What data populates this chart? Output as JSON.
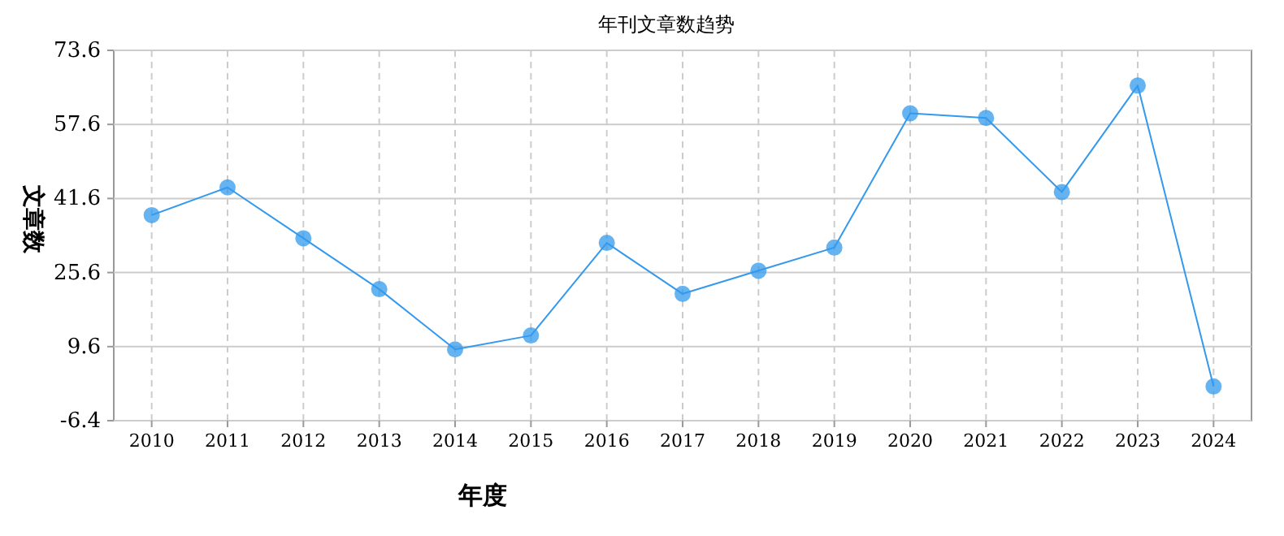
{
  "chart_data": {
    "type": "line",
    "title": "年刊文章数趋势",
    "xlabel": "年度",
    "ylabel": "文章数",
    "categories": [
      "2010",
      "2011",
      "2012",
      "2013",
      "2014",
      "2015",
      "2016",
      "2017",
      "2018",
      "2019",
      "2020",
      "2021",
      "2022",
      "2023",
      "2024"
    ],
    "series": [
      {
        "color": "#3399ee",
        "values": [
          38,
          44,
          33,
          22,
          9,
          12,
          32,
          21,
          26,
          31,
          60,
          59,
          43,
          66,
          1
        ]
      }
    ],
    "ylim": [
      -6.4,
      73.6
    ],
    "yticks": [
      -6.4,
      9.6,
      25.6,
      41.6,
      57.6,
      73.6
    ],
    "grid": true,
    "marker": "circle"
  }
}
